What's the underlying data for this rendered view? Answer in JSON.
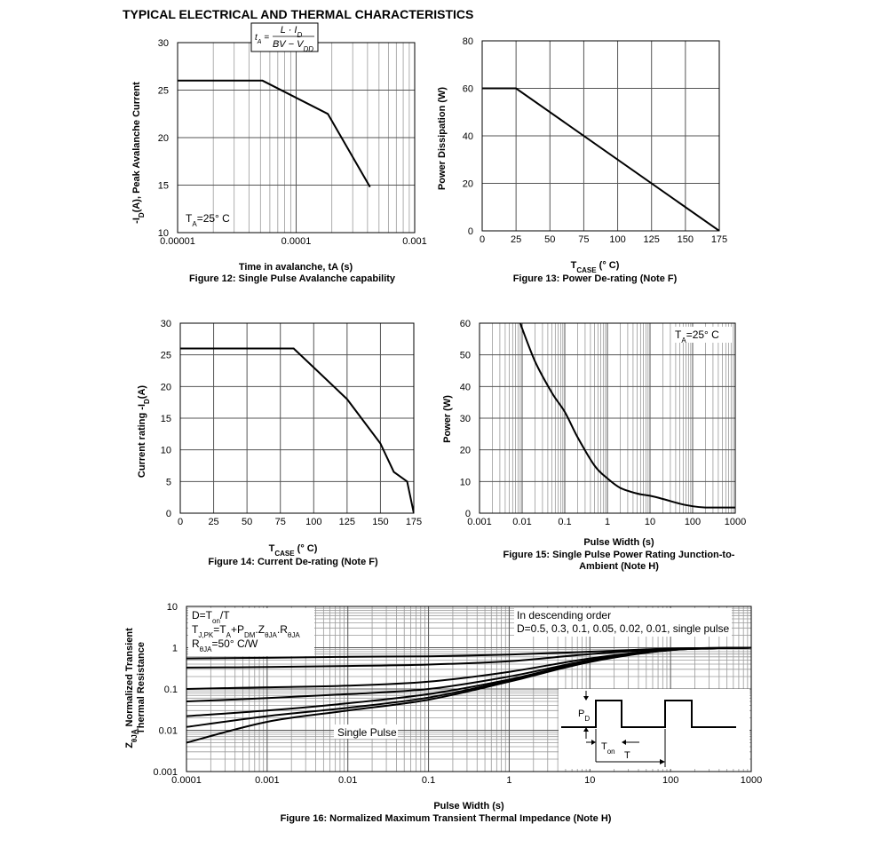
{
  "header": {
    "title": "TYPICAL ELECTRICAL AND THERMAL CHARACTERISTICS"
  },
  "chart_data": [
    {
      "id": "fig12",
      "type": "line",
      "xscale": "log",
      "xlim": [
        1e-05,
        0.001
      ],
      "ylim": [
        10,
        30
      ],
      "xticks": [
        1e-05,
        0.0001,
        0.001
      ],
      "xtick_labels": [
        "0.00001",
        "0.0001",
        "0.001"
      ],
      "yticks": [
        10,
        15,
        20,
        25,
        30
      ],
      "ytick_labels": [
        "10",
        "15",
        "20",
        "25",
        "30"
      ],
      "xlabel": "Time in avalanche, tA (s)",
      "ylabel": "-ID(A), Peak Avalanche Current",
      "caption": "Figure 12: Single Pulse Avalanche capability",
      "annotation": "TA=25° C",
      "formula": "tA = L·ID / (BV − VDD)",
      "series": [
        {
          "x": [
            1e-05,
            5.2e-05,
            0.000185,
            0.00042
          ],
          "y": [
            26,
            26,
            22.5,
            14.8
          ]
        }
      ]
    },
    {
      "id": "fig13",
      "type": "line",
      "xlim": [
        0,
        175
      ],
      "ylim": [
        0,
        80
      ],
      "xticks": [
        0,
        25,
        50,
        75,
        100,
        125,
        150,
        175
      ],
      "xtick_labels": [
        "0",
        "25",
        "50",
        "75",
        "100",
        "125",
        "150",
        "175"
      ],
      "yticks": [
        0,
        20,
        40,
        60,
        80
      ],
      "ytick_labels": [
        "0",
        "20",
        "40",
        "60",
        "80"
      ],
      "xlabel": "TCASE (° C)",
      "ylabel": "Power Dissipation (W)",
      "caption": "Figure 13: Power De-rating (Note F)",
      "series": [
        {
          "x": [
            0,
            25,
            175
          ],
          "y": [
            60,
            60,
            0
          ]
        }
      ]
    },
    {
      "id": "fig14",
      "type": "line",
      "xlim": [
        0,
        175
      ],
      "ylim": [
        0,
        30
      ],
      "xticks": [
        0,
        25,
        50,
        75,
        100,
        125,
        150,
        175
      ],
      "xtick_labels": [
        "0",
        "25",
        "50",
        "75",
        "100",
        "125",
        "150",
        "175"
      ],
      "yticks": [
        0,
        5,
        10,
        15,
        20,
        25,
        30
      ],
      "ytick_labels": [
        "0",
        "5",
        "10",
        "15",
        "20",
        "25",
        "30"
      ],
      "xlabel": "TCASE (° C)",
      "ylabel": "Current rating -ID(A)",
      "caption": "Figure 14: Current De-rating (Note F)",
      "series": [
        {
          "x": [
            0,
            85,
            100,
            125,
            150,
            160,
            170,
            175
          ],
          "y": [
            26,
            26,
            23,
            18,
            11,
            6.5,
            5,
            0
          ]
        }
      ]
    },
    {
      "id": "fig15",
      "type": "line",
      "xscale": "log",
      "xlim": [
        0.001,
        1000
      ],
      "ylim": [
        0,
        60
      ],
      "xticks": [
        0.001,
        0.01,
        0.1,
        1,
        10,
        100,
        1000
      ],
      "xtick_labels": [
        "0.001",
        "0.01",
        "0.1",
        "1",
        "10",
        "100",
        "1000"
      ],
      "yticks": [
        0,
        10,
        20,
        30,
        40,
        50,
        60
      ],
      "ytick_labels": [
        "0",
        "10",
        "20",
        "30",
        "40",
        "50",
        "60"
      ],
      "xlabel": "Pulse Width (s)",
      "ylabel": "Power (W)",
      "caption_lines": [
        "Figure 15: Single Pulse Power Rating Junction-to-",
        "Ambient (Note H)"
      ],
      "annotation": "TA=25° C",
      "series": [
        {
          "x": [
            0.009,
            0.02,
            0.05,
            0.1,
            0.2,
            0.5,
            1,
            2,
            5,
            10,
            20,
            50,
            100,
            200,
            500,
            1000
          ],
          "y": [
            60,
            48,
            38,
            32,
            24,
            15,
            11,
            8,
            6.2,
            5.5,
            4.5,
            3,
            2.2,
            1.8,
            1.8,
            1.8
          ]
        }
      ]
    },
    {
      "id": "fig16",
      "type": "line",
      "xscale": "log",
      "yscale": "log",
      "xlim": [
        0.0001,
        1000
      ],
      "ylim": [
        0.001,
        10
      ],
      "xticks": [
        0.0001,
        0.001,
        0.01,
        0.1,
        1,
        10,
        100,
        1000
      ],
      "xtick_labels": [
        "0.0001",
        "0.001",
        "0.01",
        "0.1",
        "1",
        "10",
        "100",
        "1000"
      ],
      "yticks": [
        0.001,
        0.01,
        0.1,
        1,
        10
      ],
      "ytick_labels": [
        "0.001",
        "0.01",
        "0.1",
        "1",
        "10"
      ],
      "xlabel": "Pulse Width (s)",
      "ylabel_lines": [
        "ZθJA Normalized Transient",
        "Thermal Resistance"
      ],
      "caption": "Figure 16: Normalized Maximum Transient Thermal Impedance (Note H)",
      "notes_left": [
        "D=Ton/T",
        "TJ,PK=TA+PDM.ZθJA.RθJA",
        "RθJA=50° C/W"
      ],
      "notes_right": [
        "In descending order",
        "D=0.5, 0.3, 0.1, 0.05, 0.02, 0.01, single pulse"
      ],
      "single_pulse_label": "Single Pulse",
      "inset_labels": {
        "pd": "PD",
        "ton": "Ton",
        "t": "T"
      },
      "series": [
        {
          "name": "D=0.5",
          "x": [
            0.0001,
            0.001,
            0.01,
            0.1,
            1,
            10,
            100,
            1000
          ],
          "y": [
            0.55,
            0.57,
            0.6,
            0.62,
            0.68,
            0.8,
            0.95,
            1.0
          ]
        },
        {
          "name": "D=0.3",
          "x": [
            0.0001,
            0.001,
            0.01,
            0.1,
            1,
            10,
            100,
            1000
          ],
          "y": [
            0.33,
            0.34,
            0.36,
            0.39,
            0.47,
            0.7,
            0.93,
            1.0
          ]
        },
        {
          "name": "D=0.1",
          "x": [
            0.0001,
            0.001,
            0.01,
            0.1,
            1,
            10,
            100,
            1000
          ],
          "y": [
            0.1,
            0.11,
            0.12,
            0.15,
            0.26,
            0.55,
            0.9,
            1.0
          ]
        },
        {
          "name": "D=0.05",
          "x": [
            0.0001,
            0.001,
            0.01,
            0.1,
            1,
            10,
            100,
            1000
          ],
          "y": [
            0.05,
            0.06,
            0.075,
            0.1,
            0.2,
            0.5,
            0.9,
            1.0
          ]
        },
        {
          "name": "D=0.02",
          "x": [
            0.0001,
            0.001,
            0.01,
            0.1,
            1,
            10,
            100,
            1000
          ],
          "y": [
            0.022,
            0.03,
            0.045,
            0.075,
            0.17,
            0.48,
            0.88,
            1.0
          ]
        },
        {
          "name": "D=0.01",
          "x": [
            0.0001,
            0.001,
            0.01,
            0.1,
            1,
            10,
            100,
            1000
          ],
          "y": [
            0.012,
            0.022,
            0.035,
            0.062,
            0.16,
            0.47,
            0.88,
            1.0
          ]
        },
        {
          "name": "single pulse",
          "x": [
            0.0001,
            0.001,
            0.01,
            0.1,
            1,
            10,
            100,
            1000
          ],
          "y": [
            0.005,
            0.016,
            0.03,
            0.055,
            0.15,
            0.45,
            0.87,
            1.0
          ]
        }
      ]
    }
  ]
}
